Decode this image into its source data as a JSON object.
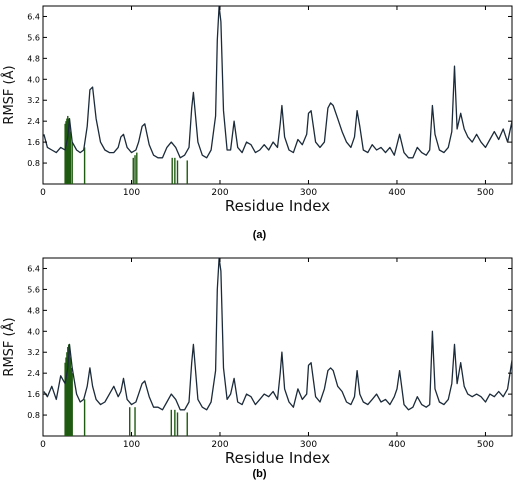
{
  "chart_data": [
    {
      "type": "line",
      "panel_label": "(a)",
      "xlabel": "Residue Index",
      "ylabel": "RMSF (Å)",
      "xlim": [
        0,
        530
      ],
      "ylim": [
        0,
        6.8
      ],
      "x_ticks": [
        "0",
        "100",
        "200",
        "300",
        "400",
        "500"
      ],
      "y_ticks": [
        "0.8",
        "1.6",
        "2.4",
        "3.2",
        "4.0",
        "4.8",
        "5.6",
        "6.4"
      ],
      "grid": false,
      "line_color": "#1c2b3a",
      "highlight_color": "#1e5b10",
      "series": [
        {
          "x": [
            1,
            5,
            10,
            15,
            20,
            25,
            28,
            30,
            33,
            38,
            42,
            46,
            50,
            53,
            56,
            60,
            65,
            70,
            75,
            80,
            85,
            88,
            91,
            95,
            100,
            105,
            108,
            112,
            115,
            120,
            125,
            130,
            135,
            140,
            145,
            150,
            155,
            160,
            165,
            168,
            170,
            175,
            180,
            185,
            190,
            195,
            197,
            199,
            201,
            204,
            208,
            212,
            216,
            220,
            225,
            230,
            235,
            240,
            245,
            250,
            255,
            260,
            265,
            268,
            270,
            273,
            278,
            283,
            288,
            293,
            298,
            300,
            303,
            308,
            313,
            318,
            322,
            325,
            328,
            333,
            338,
            343,
            348,
            352,
            355,
            358,
            362,
            367,
            372,
            377,
            382,
            387,
            392,
            397,
            400,
            403,
            408,
            413,
            418,
            423,
            428,
            433,
            437,
            440,
            443,
            448,
            453,
            458,
            462,
            465,
            468,
            472,
            476,
            480,
            485,
            490,
            495,
            500,
            505,
            510,
            515,
            520,
            525,
            530
          ],
          "y": [
            1.9,
            1.4,
            1.3,
            1.2,
            1.4,
            1.3,
            1.8,
            2.5,
            1.6,
            1.3,
            1.2,
            1.3,
            2.2,
            3.6,
            3.7,
            2.5,
            1.6,
            1.3,
            1.2,
            1.2,
            1.4,
            1.8,
            1.9,
            1.4,
            1.2,
            1.3,
            1.6,
            2.2,
            2.3,
            1.5,
            1.1,
            1.0,
            1.0,
            1.4,
            1.6,
            1.4,
            1.0,
            1.1,
            1.4,
            2.9,
            3.5,
            1.6,
            1.1,
            1.0,
            1.3,
            2.6,
            5.5,
            6.8,
            6.2,
            2.8,
            1.3,
            1.3,
            2.4,
            1.4,
            1.2,
            1.6,
            1.5,
            1.2,
            1.3,
            1.5,
            1.3,
            1.6,
            1.4,
            2.3,
            3.0,
            1.8,
            1.3,
            1.2,
            1.7,
            1.5,
            1.9,
            2.7,
            2.8,
            1.6,
            1.4,
            1.6,
            2.9,
            3.1,
            3.0,
            2.5,
            2.0,
            1.6,
            1.4,
            1.8,
            2.8,
            2.2,
            1.3,
            1.2,
            1.5,
            1.3,
            1.4,
            1.2,
            1.4,
            1.1,
            1.5,
            1.9,
            1.2,
            1.0,
            1.0,
            1.4,
            1.2,
            1.1,
            1.3,
            3.0,
            1.9,
            1.3,
            1.2,
            1.4,
            2.0,
            4.5,
            2.1,
            2.7,
            2.1,
            1.8,
            1.6,
            1.9,
            1.6,
            1.4,
            1.7,
            2.0,
            1.7,
            2.1,
            1.6,
            2.4
          ]
        }
      ],
      "highlight_bars": [
        {
          "x": 25,
          "y": 2.3
        },
        {
          "x": 26,
          "y": 2.4
        },
        {
          "x": 27,
          "y": 2.5
        },
        {
          "x": 28,
          "y": 2.6
        },
        {
          "x": 29,
          "y": 2.5
        },
        {
          "x": 30,
          "y": 2.3
        },
        {
          "x": 31,
          "y": 2.0
        },
        {
          "x": 33,
          "y": 1.6
        },
        {
          "x": 47,
          "y": 1.4
        },
        {
          "x": 102,
          "y": 1.0
        },
        {
          "x": 104,
          "y": 1.1
        },
        {
          "x": 106,
          "y": 1.2
        },
        {
          "x": 146,
          "y": 1.0
        },
        {
          "x": 149,
          "y": 1.0
        },
        {
          "x": 152,
          "y": 0.9
        },
        {
          "x": 163,
          "y": 0.9
        }
      ]
    },
    {
      "type": "line",
      "panel_label": "(b)",
      "xlabel": "Residue Index",
      "ylabel": "RMSF (Å)",
      "xlim": [
        0,
        530
      ],
      "ylim": [
        0,
        6.8
      ],
      "x_ticks": [
        "0",
        "100",
        "200",
        "300",
        "400",
        "500"
      ],
      "y_ticks": [
        "0.8",
        "1.6",
        "2.4",
        "3.2",
        "4.0",
        "4.8",
        "5.6",
        "6.4"
      ],
      "grid": false,
      "line_color": "#1c2b3a",
      "highlight_color": "#1e5b10",
      "series": [
        {
          "x": [
            1,
            5,
            10,
            15,
            20,
            25,
            28,
            30,
            33,
            38,
            42,
            46,
            50,
            53,
            56,
            60,
            65,
            70,
            75,
            80,
            85,
            88,
            91,
            95,
            100,
            105,
            108,
            112,
            115,
            120,
            125,
            130,
            135,
            140,
            145,
            150,
            155,
            160,
            165,
            168,
            170,
            175,
            180,
            185,
            190,
            195,
            197,
            199,
            201,
            204,
            208,
            212,
            216,
            220,
            225,
            230,
            235,
            240,
            245,
            250,
            255,
            260,
            265,
            268,
            270,
            273,
            278,
            283,
            288,
            293,
            298,
            300,
            303,
            308,
            313,
            318,
            322,
            325,
            328,
            333,
            338,
            343,
            348,
            352,
            355,
            358,
            362,
            367,
            372,
            377,
            382,
            387,
            392,
            397,
            400,
            403,
            408,
            413,
            418,
            423,
            428,
            433,
            437,
            440,
            443,
            448,
            453,
            458,
            462,
            465,
            468,
            472,
            476,
            480,
            485,
            490,
            495,
            500,
            505,
            510,
            515,
            520,
            525,
            530
          ],
          "y": [
            1.7,
            1.5,
            1.9,
            1.4,
            2.3,
            2.0,
            2.6,
            3.5,
            2.6,
            1.6,
            1.3,
            1.4,
            1.9,
            2.6,
            1.9,
            1.4,
            1.2,
            1.3,
            1.6,
            1.9,
            1.5,
            1.7,
            2.2,
            1.4,
            1.2,
            1.3,
            1.6,
            2.0,
            2.1,
            1.5,
            1.1,
            1.1,
            1.0,
            1.3,
            1.6,
            1.4,
            1.0,
            1.0,
            1.3,
            2.8,
            3.5,
            1.4,
            1.1,
            1.0,
            1.3,
            2.5,
            5.6,
            6.8,
            6.3,
            2.6,
            1.4,
            1.6,
            2.2,
            1.3,
            1.2,
            1.6,
            1.5,
            1.2,
            1.4,
            1.6,
            1.5,
            1.7,
            1.4,
            2.4,
            3.2,
            1.8,
            1.3,
            1.1,
            1.8,
            1.4,
            1.6,
            2.7,
            2.8,
            1.5,
            1.3,
            1.8,
            2.5,
            2.6,
            2.5,
            1.9,
            1.7,
            1.3,
            1.2,
            1.5,
            2.5,
            1.6,
            1.3,
            1.2,
            1.4,
            1.6,
            1.3,
            1.4,
            1.2,
            1.5,
            1.8,
            2.5,
            1.2,
            1.0,
            1.1,
            1.5,
            1.2,
            1.1,
            1.2,
            4.0,
            1.8,
            1.3,
            1.2,
            1.4,
            2.0,
            3.5,
            2.0,
            2.8,
            1.9,
            1.6,
            1.5,
            1.6,
            1.5,
            1.3,
            1.6,
            1.5,
            1.7,
            1.5,
            1.8,
            2.9
          ]
        }
      ],
      "highlight_bars": [
        {
          "x": 25,
          "y": 2.8
        },
        {
          "x": 26,
          "y": 3.0
        },
        {
          "x": 27,
          "y": 3.2
        },
        {
          "x": 28,
          "y": 3.4
        },
        {
          "x": 29,
          "y": 3.5
        },
        {
          "x": 30,
          "y": 3.3
        },
        {
          "x": 31,
          "y": 3.0
        },
        {
          "x": 32,
          "y": 2.6
        },
        {
          "x": 33,
          "y": 2.4
        },
        {
          "x": 47,
          "y": 1.4
        },
        {
          "x": 98,
          "y": 1.1
        },
        {
          "x": 104,
          "y": 1.1
        },
        {
          "x": 145,
          "y": 1.0
        },
        {
          "x": 149,
          "y": 1.0
        },
        {
          "x": 152,
          "y": 0.9
        },
        {
          "x": 163,
          "y": 0.9
        }
      ]
    }
  ]
}
